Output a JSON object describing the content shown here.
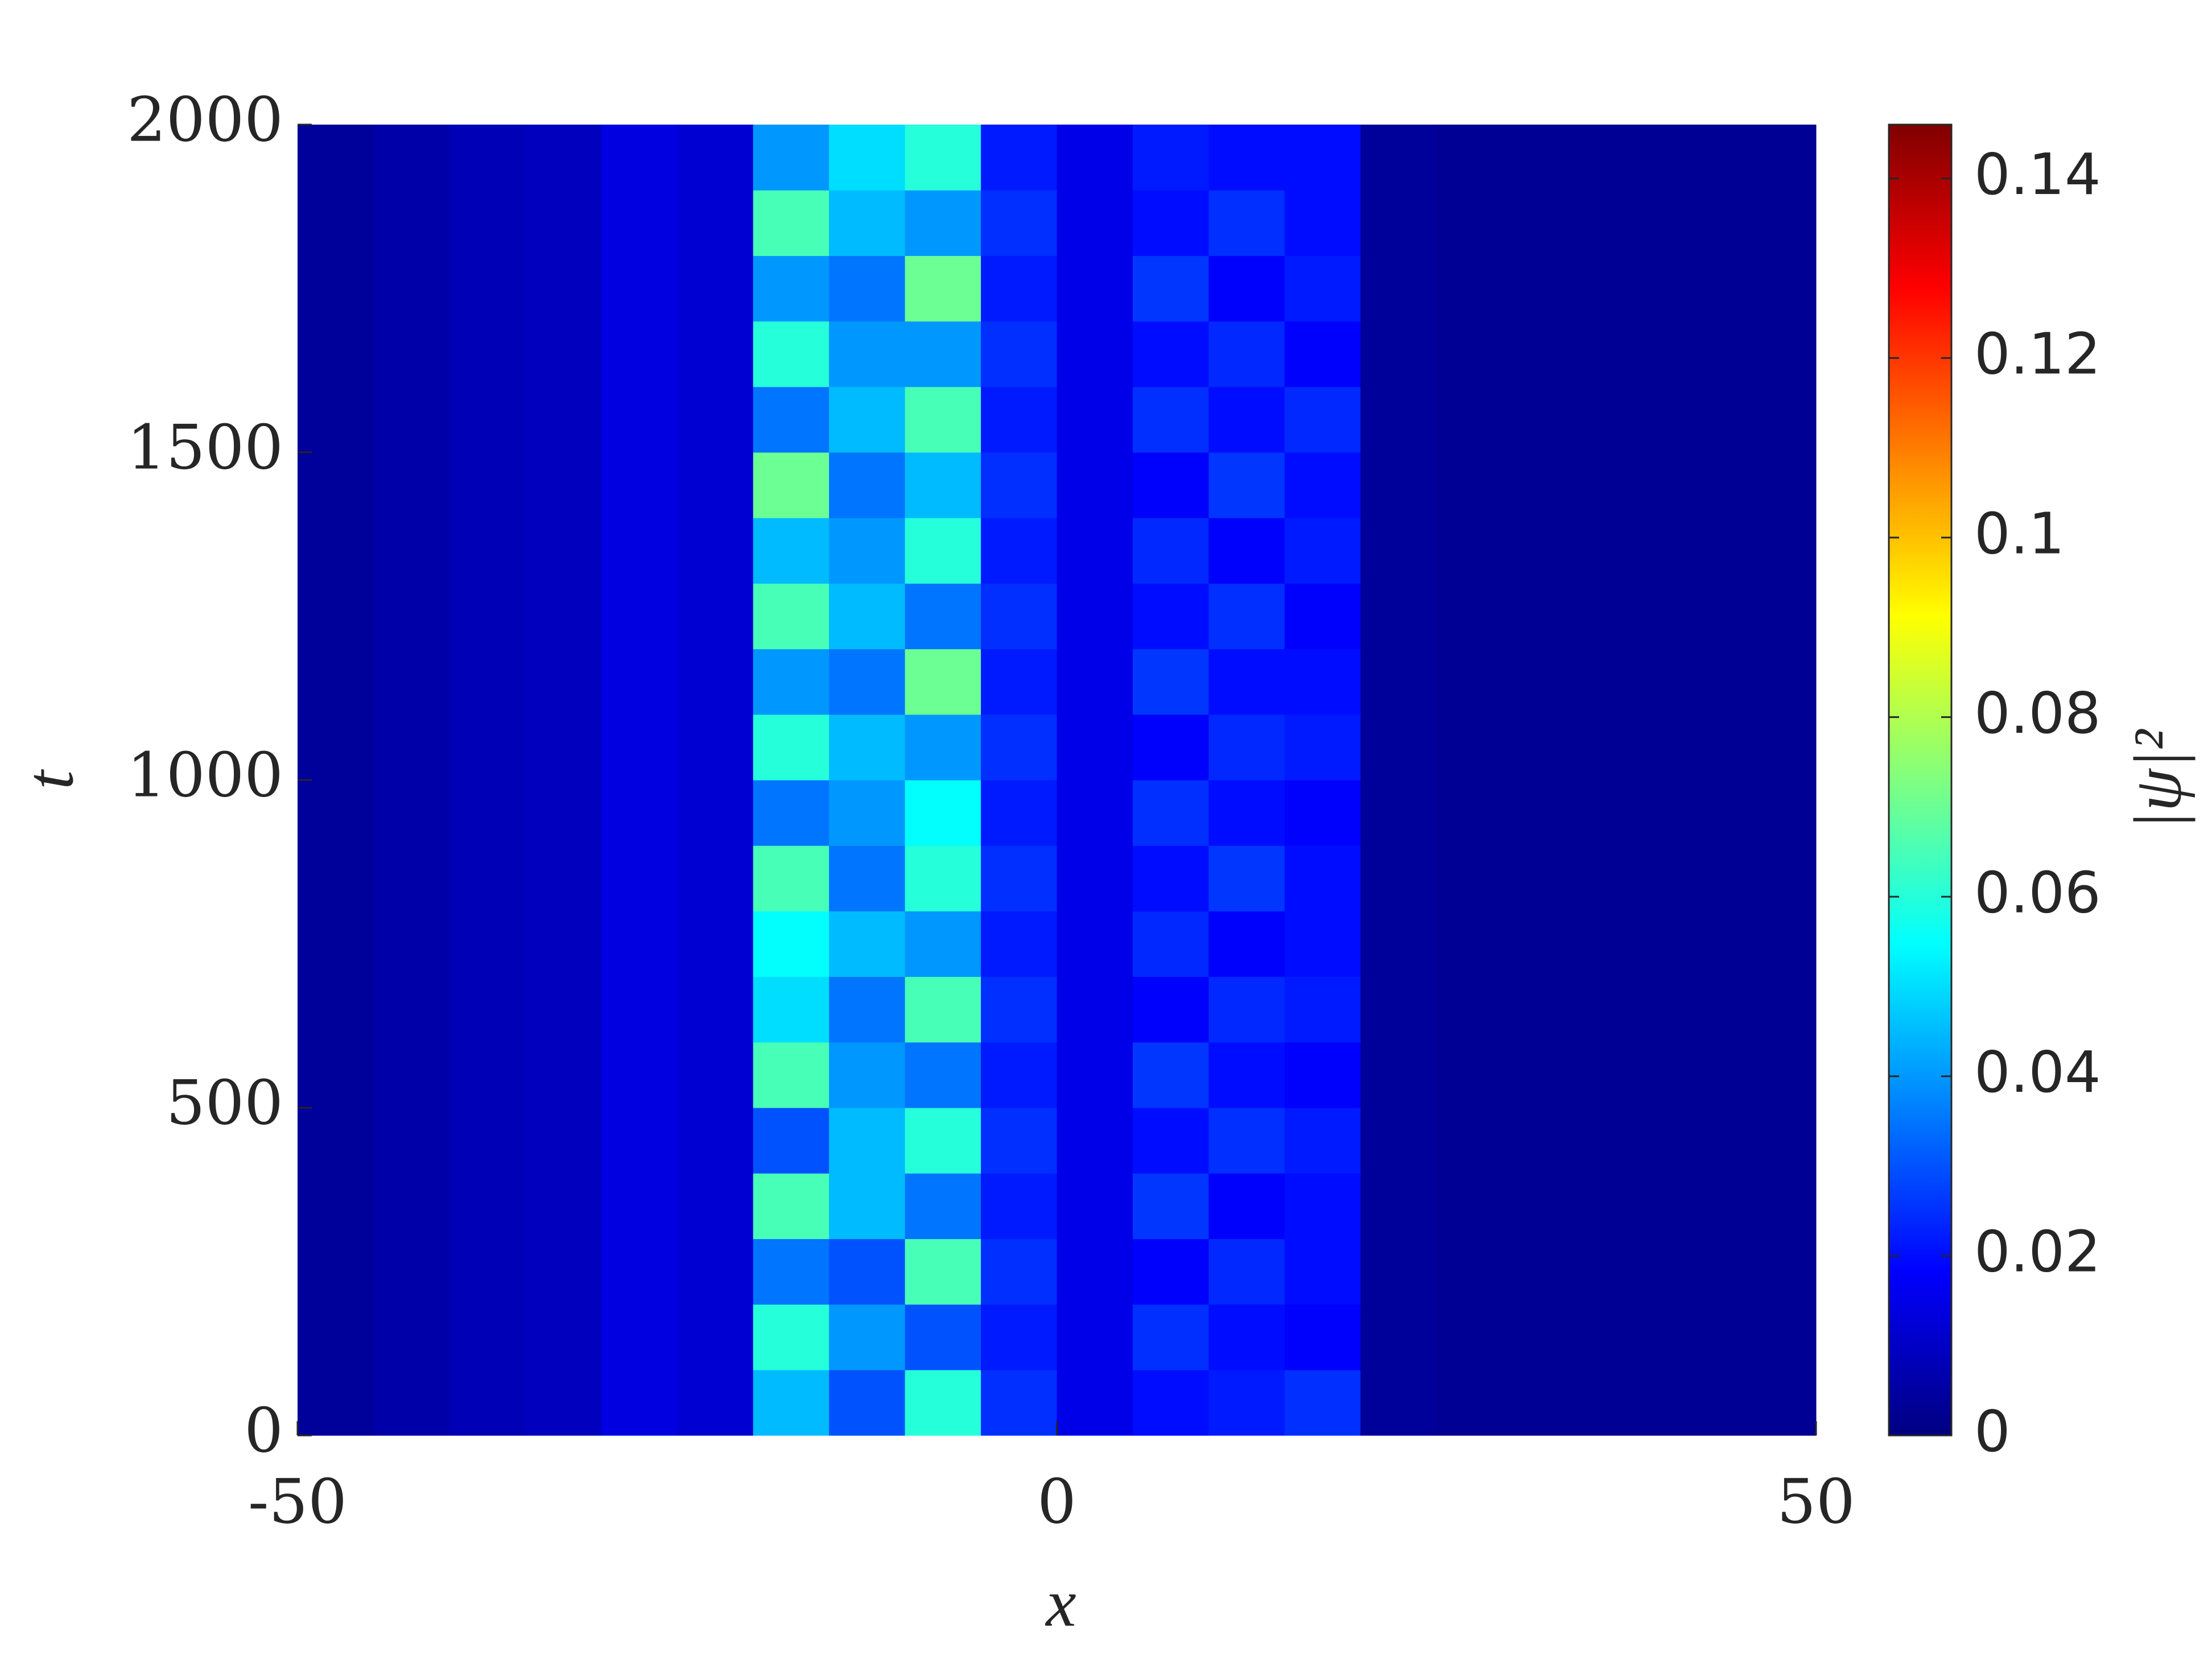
{
  "chart_data": {
    "type": "heatmap",
    "xlabel": "x",
    "ylabel": "t",
    "colorbar_label": "|ψ|²",
    "x": [
      -47.5,
      -42.5,
      -37.5,
      -32.5,
      -27.5,
      -22.5,
      -17.5,
      -12.5,
      -7.5,
      -2.5,
      2.5,
      7.5,
      12.5,
      17.5,
      22.5,
      27.5,
      32.5,
      37.5,
      42.5,
      47.5
    ],
    "y": [
      50,
      150,
      250,
      350,
      450,
      550,
      650,
      750,
      850,
      950,
      1050,
      1150,
      1250,
      1350,
      1450,
      1550,
      1650,
      1750,
      1850,
      1950
    ],
    "z": [
      [
        0.004,
        0.006,
        0.008,
        0.009,
        0.014,
        0.012,
        0.045,
        0.03,
        0.06,
        0.025,
        0.015,
        0.02,
        0.022,
        0.025,
        0.004,
        0.003,
        0.003,
        0.003,
        0.003,
        0.003
      ],
      [
        0.004,
        0.006,
        0.008,
        0.009,
        0.014,
        0.012,
        0.06,
        0.04,
        0.03,
        0.022,
        0.015,
        0.025,
        0.02,
        0.018,
        0.004,
        0.003,
        0.003,
        0.003,
        0.003,
        0.003
      ],
      [
        0.004,
        0.006,
        0.008,
        0.009,
        0.014,
        0.012,
        0.035,
        0.03,
        0.065,
        0.025,
        0.015,
        0.018,
        0.024,
        0.02,
        0.004,
        0.003,
        0.003,
        0.003,
        0.003,
        0.003
      ],
      [
        0.004,
        0.006,
        0.008,
        0.009,
        0.014,
        0.012,
        0.065,
        0.045,
        0.035,
        0.022,
        0.015,
        0.026,
        0.018,
        0.02,
        0.004,
        0.003,
        0.003,
        0.003,
        0.003,
        0.003
      ],
      [
        0.004,
        0.006,
        0.008,
        0.009,
        0.014,
        0.012,
        0.03,
        0.045,
        0.06,
        0.025,
        0.015,
        0.02,
        0.025,
        0.022,
        0.004,
        0.003,
        0.003,
        0.003,
        0.003,
        0.003
      ],
      [
        0.004,
        0.006,
        0.008,
        0.009,
        0.014,
        0.012,
        0.065,
        0.04,
        0.035,
        0.022,
        0.015,
        0.026,
        0.02,
        0.018,
        0.004,
        0.003,
        0.003,
        0.003,
        0.003,
        0.003
      ],
      [
        0.004,
        0.006,
        0.008,
        0.009,
        0.014,
        0.012,
        0.05,
        0.035,
        0.065,
        0.025,
        0.015,
        0.018,
        0.024,
        0.022,
        0.004,
        0.003,
        0.003,
        0.003,
        0.003,
        0.003
      ],
      [
        0.004,
        0.006,
        0.008,
        0.009,
        0.014,
        0.012,
        0.055,
        0.045,
        0.04,
        0.022,
        0.015,
        0.024,
        0.018,
        0.02,
        0.004,
        0.003,
        0.003,
        0.003,
        0.003,
        0.003
      ],
      [
        0.004,
        0.006,
        0.008,
        0.009,
        0.014,
        0.012,
        0.065,
        0.035,
        0.06,
        0.025,
        0.015,
        0.02,
        0.026,
        0.02,
        0.004,
        0.003,
        0.003,
        0.003,
        0.003,
        0.003
      ],
      [
        0.004,
        0.006,
        0.008,
        0.009,
        0.014,
        0.012,
        0.035,
        0.04,
        0.055,
        0.022,
        0.015,
        0.025,
        0.02,
        0.018,
        0.004,
        0.003,
        0.003,
        0.003,
        0.003,
        0.003
      ],
      [
        0.004,
        0.006,
        0.008,
        0.009,
        0.014,
        0.012,
        0.06,
        0.045,
        0.04,
        0.025,
        0.015,
        0.018,
        0.024,
        0.022,
        0.004,
        0.003,
        0.003,
        0.003,
        0.003,
        0.003
      ],
      [
        0.004,
        0.006,
        0.008,
        0.009,
        0.014,
        0.012,
        0.04,
        0.035,
        0.07,
        0.022,
        0.015,
        0.026,
        0.02,
        0.02,
        0.004,
        0.003,
        0.003,
        0.003,
        0.003,
        0.003
      ],
      [
        0.004,
        0.006,
        0.008,
        0.009,
        0.014,
        0.012,
        0.065,
        0.045,
        0.035,
        0.025,
        0.015,
        0.02,
        0.025,
        0.018,
        0.004,
        0.003,
        0.003,
        0.003,
        0.003,
        0.003
      ],
      [
        0.004,
        0.006,
        0.008,
        0.009,
        0.014,
        0.012,
        0.045,
        0.04,
        0.06,
        0.022,
        0.015,
        0.024,
        0.018,
        0.022,
        0.004,
        0.003,
        0.003,
        0.003,
        0.003,
        0.003
      ],
      [
        0.004,
        0.006,
        0.008,
        0.009,
        0.014,
        0.012,
        0.07,
        0.035,
        0.045,
        0.025,
        0.015,
        0.018,
        0.026,
        0.02,
        0.004,
        0.003,
        0.003,
        0.003,
        0.003,
        0.003
      ],
      [
        0.004,
        0.006,
        0.008,
        0.009,
        0.014,
        0.012,
        0.035,
        0.045,
        0.065,
        0.022,
        0.015,
        0.025,
        0.02,
        0.024,
        0.004,
        0.003,
        0.003,
        0.003,
        0.003,
        0.003
      ],
      [
        0.004,
        0.006,
        0.008,
        0.009,
        0.014,
        0.012,
        0.06,
        0.04,
        0.04,
        0.025,
        0.015,
        0.02,
        0.024,
        0.018,
        0.004,
        0.003,
        0.003,
        0.003,
        0.003,
        0.003
      ],
      [
        0.004,
        0.006,
        0.008,
        0.009,
        0.014,
        0.012,
        0.04,
        0.035,
        0.07,
        0.022,
        0.015,
        0.026,
        0.018,
        0.022,
        0.004,
        0.003,
        0.003,
        0.003,
        0.003,
        0.003
      ],
      [
        0.004,
        0.006,
        0.008,
        0.009,
        0.014,
        0.012,
        0.065,
        0.045,
        0.04,
        0.025,
        0.015,
        0.02,
        0.025,
        0.02,
        0.004,
        0.003,
        0.003,
        0.003,
        0.003,
        0.003
      ],
      [
        0.004,
        0.006,
        0.008,
        0.009,
        0.014,
        0.012,
        0.04,
        0.05,
        0.06,
        0.022,
        0.015,
        0.022,
        0.02,
        0.02,
        0.004,
        0.003,
        0.003,
        0.003,
        0.003,
        0.003
      ]
    ],
    "xlim": [
      -50,
      50
    ],
    "xticks": [
      -50,
      0,
      50
    ],
    "ylim": [
      0,
      2000
    ],
    "yticks": [
      0,
      500,
      1000,
      1500,
      2000
    ],
    "clim": [
      0,
      0.146
    ],
    "cticks": [
      0,
      0.02,
      0.04,
      0.06,
      0.08,
      0.1,
      0.12,
      0.14
    ],
    "colormap": "jet"
  }
}
